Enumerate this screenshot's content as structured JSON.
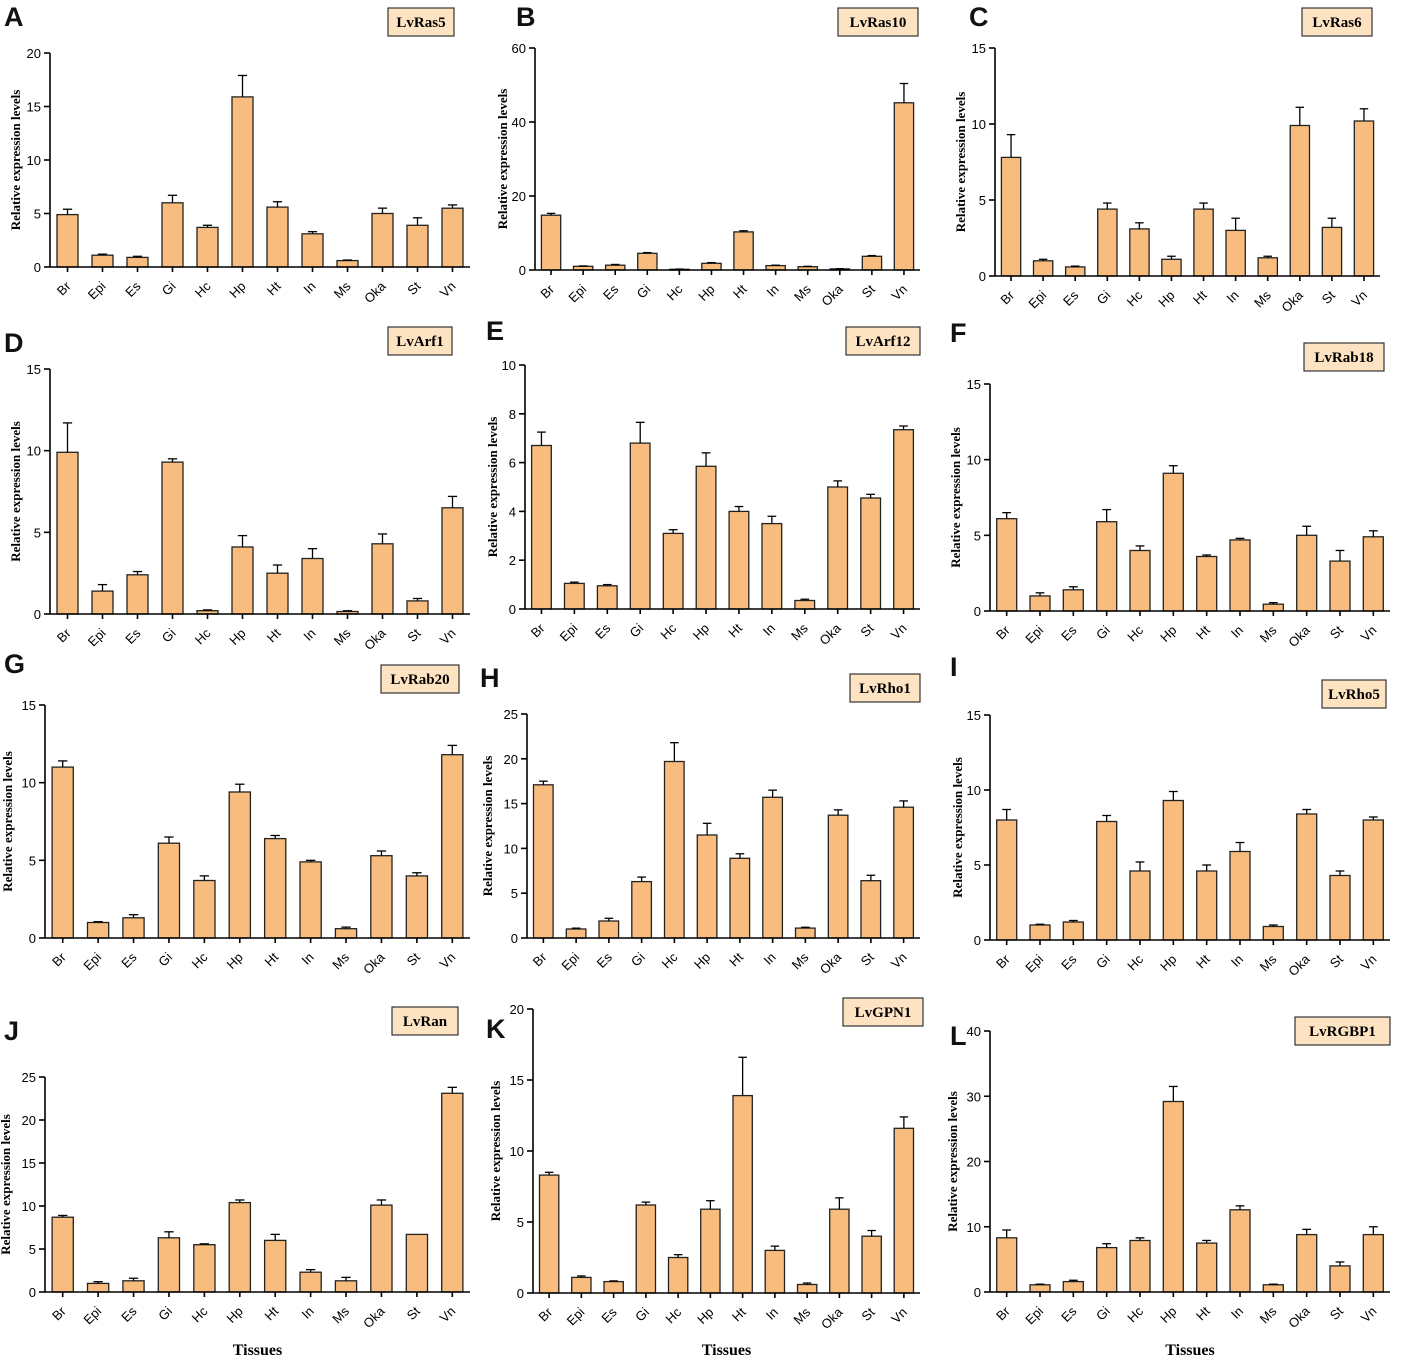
{
  "x_axis_title": "Tissues",
  "chart_data": [
    {
      "type": "bar",
      "panel": "A",
      "title": "LvRas5",
      "ylabel": "Relative expression levels",
      "ylim": [
        0,
        20
      ],
      "yticks": [
        0,
        5,
        10,
        15,
        20
      ],
      "categories": [
        "Br",
        "Epi",
        "Es",
        "Gi",
        "Hc",
        "Hp",
        "Ht",
        "In",
        "Ms",
        "Oka",
        "St",
        "Vn"
      ],
      "values": [
        4.9,
        1.1,
        0.9,
        6.0,
        3.7,
        15.9,
        5.6,
        3.1,
        0.6,
        5.0,
        3.9,
        5.5
      ],
      "errors": [
        0.5,
        0.1,
        0.1,
        0.7,
        0.2,
        2.0,
        0.5,
        0.2,
        0.05,
        0.5,
        0.7,
        0.3
      ]
    },
    {
      "type": "bar",
      "panel": "B",
      "title": "LvRas10",
      "ylabel": "Relative expression levels",
      "ylim": [
        0,
        60
      ],
      "yticks": [
        0,
        20,
        40,
        60
      ],
      "categories": [
        "Br",
        "Epi",
        "Es",
        "Gi",
        "Hc",
        "Hp",
        "Ht",
        "In",
        "Ms",
        "Oka",
        "St",
        "Vn"
      ],
      "values": [
        14.8,
        1.0,
        1.3,
        4.5,
        0.2,
        1.8,
        10.3,
        1.2,
        0.9,
        0.3,
        3.7,
        45.2
      ],
      "errors": [
        0.5,
        0.1,
        0.2,
        0.2,
        0.05,
        0.2,
        0.3,
        0.1,
        0.1,
        0.05,
        0.2,
        5.2
      ]
    },
    {
      "type": "bar",
      "panel": "C",
      "title": "LvRas6",
      "ylabel": "Relative expression levels",
      "ylim": [
        0,
        15
      ],
      "yticks": [
        0,
        5,
        10,
        15
      ],
      "categories": [
        "Br",
        "Epi",
        "Es",
        "Gi",
        "Hc",
        "Hp",
        "Ht",
        "In",
        "Ms",
        "Oka",
        "St",
        "Vn"
      ],
      "values": [
        7.8,
        1.0,
        0.6,
        4.4,
        3.1,
        1.1,
        4.4,
        3.0,
        1.2,
        9.9,
        3.2,
        10.2
      ],
      "errors": [
        1.5,
        0.1,
        0.05,
        0.4,
        0.4,
        0.2,
        0.4,
        0.8,
        0.1,
        1.2,
        0.6,
        0.8
      ]
    },
    {
      "type": "bar",
      "panel": "D",
      "title": "LvArf1",
      "ylabel": "Relative expression levels",
      "ylim": [
        0,
        15
      ],
      "yticks": [
        0,
        5,
        10,
        15
      ],
      "categories": [
        "Br",
        "Epi",
        "Es",
        "Gi",
        "Hc",
        "Hp",
        "Ht",
        "In",
        "Ms",
        "Oka",
        "St",
        "Vn"
      ],
      "values": [
        9.9,
        1.4,
        2.4,
        9.3,
        0.2,
        4.1,
        2.5,
        3.4,
        0.15,
        4.3,
        0.8,
        6.5
      ],
      "errors": [
        1.8,
        0.4,
        0.2,
        0.2,
        0.05,
        0.7,
        0.5,
        0.6,
        0.05,
        0.6,
        0.15,
        0.7
      ]
    },
    {
      "type": "bar",
      "panel": "E",
      "title": "LvArf12",
      "ylabel": "Relative expression levels",
      "ylim": [
        0,
        10
      ],
      "yticks": [
        0,
        2,
        4,
        6,
        8,
        10
      ],
      "categories": [
        "Br",
        "Epi",
        "Es",
        "Gi",
        "Hc",
        "Hp",
        "Ht",
        "In",
        "Ms",
        "Oka",
        "St",
        "Vn"
      ],
      "values": [
        6.7,
        1.05,
        0.95,
        6.8,
        3.1,
        5.85,
        4.0,
        3.5,
        0.35,
        5.0,
        4.55,
        7.35
      ],
      "errors": [
        0.55,
        0.05,
        0.05,
        0.85,
        0.15,
        0.55,
        0.2,
        0.3,
        0.05,
        0.25,
        0.15,
        0.15
      ]
    },
    {
      "type": "bar",
      "panel": "F",
      "title": "LvRab18",
      "ylabel": "Relative expression levels",
      "ylim": [
        0,
        15
      ],
      "yticks": [
        0,
        5,
        10,
        15
      ],
      "categories": [
        "Br",
        "Epi",
        "Es",
        "Gi",
        "Hc",
        "Hp",
        "Ht",
        "In",
        "Ms",
        "Oka",
        "St",
        "Vn"
      ],
      "values": [
        6.1,
        1.0,
        1.4,
        5.9,
        4.0,
        9.1,
        3.6,
        4.7,
        0.45,
        5.0,
        3.3,
        4.9
      ],
      "errors": [
        0.4,
        0.2,
        0.2,
        0.8,
        0.3,
        0.5,
        0.1,
        0.1,
        0.1,
        0.6,
        0.7,
        0.4
      ]
    },
    {
      "type": "bar",
      "panel": "G",
      "title": "LvRab20",
      "ylabel": "Relative expression levels",
      "ylim": [
        0,
        15
      ],
      "yticks": [
        0,
        5,
        10,
        15
      ],
      "categories": [
        "Br",
        "Epi",
        "Es",
        "Gi",
        "Hc",
        "Hp",
        "Ht",
        "In",
        "Ms",
        "Oka",
        "St",
        "Vn"
      ],
      "values": [
        11.0,
        1.0,
        1.3,
        6.1,
        3.7,
        9.4,
        6.4,
        4.9,
        0.6,
        5.3,
        4.0,
        11.8
      ],
      "errors": [
        0.4,
        0.05,
        0.2,
        0.4,
        0.3,
        0.5,
        0.2,
        0.1,
        0.1,
        0.3,
        0.2,
        0.6
      ]
    },
    {
      "type": "bar",
      "panel": "H",
      "title": "LvRho1",
      "ylabel": "Relative expression levels",
      "ylim": [
        0,
        25
      ],
      "yticks": [
        0,
        5,
        10,
        15,
        20,
        25
      ],
      "categories": [
        "Br",
        "Epi",
        "Es",
        "Gi",
        "Hc",
        "Hp",
        "Ht",
        "In",
        "Ms",
        "Oka",
        "St",
        "Vn"
      ],
      "values": [
        17.1,
        1.0,
        1.9,
        6.3,
        19.7,
        11.5,
        8.9,
        15.7,
        1.1,
        13.7,
        6.4,
        14.6
      ],
      "errors": [
        0.4,
        0.1,
        0.3,
        0.5,
        2.1,
        1.3,
        0.5,
        0.8,
        0.1,
        0.6,
        0.6,
        0.7
      ]
    },
    {
      "type": "bar",
      "panel": "I",
      "title": "LvRho5",
      "ylabel": "Relative expression levels",
      "ylim": [
        0,
        15
      ],
      "yticks": [
        0,
        5,
        10,
        15
      ],
      "categories": [
        "Br",
        "Epi",
        "Es",
        "Gi",
        "Hc",
        "Hp",
        "Ht",
        "In",
        "Ms",
        "Oka",
        "St",
        "Vn"
      ],
      "values": [
        8.0,
        1.0,
        1.2,
        7.9,
        4.6,
        9.3,
        4.6,
        5.9,
        0.9,
        8.4,
        4.3,
        8.0
      ],
      "errors": [
        0.7,
        0.05,
        0.1,
        0.4,
        0.6,
        0.6,
        0.4,
        0.6,
        0.1,
        0.3,
        0.3,
        0.2
      ]
    },
    {
      "type": "bar",
      "panel": "J",
      "title": "LvRan",
      "ylabel": "Relative expression levels",
      "xlabel": "Tissues",
      "ylim": [
        0,
        25
      ],
      "yticks": [
        0,
        5,
        10,
        15,
        20,
        25
      ],
      "categories": [
        "Br",
        "Epi",
        "Es",
        "Gi",
        "Hc",
        "Hp",
        "Ht",
        "In",
        "Ms",
        "Oka",
        "St",
        "Vn"
      ],
      "values": [
        8.7,
        1.0,
        1.3,
        6.3,
        5.5,
        10.4,
        6.0,
        2.3,
        1.3,
        10.1,
        6.7,
        23.1
      ],
      "errors": [
        0.2,
        0.2,
        0.3,
        0.7,
        0.1,
        0.3,
        0.7,
        0.3,
        0.4,
        0.6,
        0.0,
        0.7
      ]
    },
    {
      "type": "bar",
      "panel": "K",
      "title": "LvGPN1",
      "ylabel": "Relative expression levels",
      "xlabel": "Tissues",
      "ylim": [
        0,
        20
      ],
      "yticks": [
        0,
        5,
        10,
        15,
        20
      ],
      "categories": [
        "Br",
        "Epi",
        "Es",
        "Gi",
        "Hc",
        "Hp",
        "Ht",
        "In",
        "Ms",
        "Oka",
        "St",
        "Vn"
      ],
      "values": [
        8.3,
        1.1,
        0.8,
        6.2,
        2.5,
        5.9,
        13.9,
        3.0,
        0.6,
        5.9,
        4.0,
        11.6
      ],
      "errors": [
        0.2,
        0.1,
        0.05,
        0.2,
        0.2,
        0.6,
        2.7,
        0.3,
        0.1,
        0.8,
        0.4,
        0.8
      ]
    },
    {
      "type": "bar",
      "panel": "L",
      "title": "LvRGBP1",
      "ylabel": "Relative expression levels",
      "xlabel": "Tissues",
      "ylim": [
        0,
        40
      ],
      "yticks": [
        0,
        10,
        20,
        30,
        40
      ],
      "categories": [
        "Br",
        "Epi",
        "Es",
        "Gi",
        "Hc",
        "Hp",
        "Ht",
        "In",
        "Ms",
        "Oka",
        "St",
        "Vn"
      ],
      "values": [
        8.3,
        1.1,
        1.6,
        6.8,
        7.9,
        29.2,
        7.5,
        12.6,
        1.1,
        8.8,
        4.0,
        8.8
      ],
      "errors": [
        1.2,
        0.1,
        0.2,
        0.6,
        0.4,
        2.3,
        0.4,
        0.6,
        0.1,
        0.8,
        0.6,
        1.2
      ]
    }
  ]
}
